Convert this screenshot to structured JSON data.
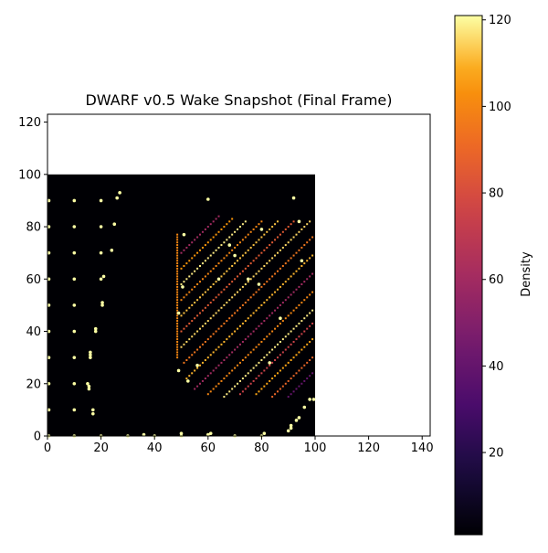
{
  "chart_data": {
    "type": "heatmap",
    "title": "DWARF v0.5 Wake Snapshot (Final Frame)",
    "xlabel": "",
    "ylabel": "",
    "xlim": [
      0,
      143
    ],
    "ylim": [
      0,
      123
    ],
    "xticks": [
      0,
      20,
      40,
      60,
      80,
      100,
      120,
      140
    ],
    "yticks": [
      0,
      20,
      40,
      60,
      80,
      100,
      120
    ],
    "grid": false,
    "field_extent": {
      "x": [
        0,
        100
      ],
      "y": [
        0,
        100
      ]
    },
    "field_background_density": 1,
    "colormap": "inferno",
    "colorbar": {
      "label": "Density",
      "range": [
        1,
        121
      ],
      "ticks": [
        20,
        40,
        60,
        80,
        100,
        120
      ]
    },
    "dense_column": {
      "x": 48.5,
      "y_start": 30,
      "y_end": 77,
      "value": 100
    },
    "streak_bands": [
      {
        "x_start": 50,
        "y_start": 70,
        "length": 14,
        "value": 60
      },
      {
        "x_start": 50,
        "y_start": 64,
        "length": 19,
        "value": 105
      },
      {
        "x_start": 50,
        "y_start": 58,
        "length": 24,
        "value": 118
      },
      {
        "x_start": 50,
        "y_start": 52,
        "length": 30,
        "value": 100
      },
      {
        "x_start": 50,
        "y_start": 46,
        "length": 36,
        "value": 112
      },
      {
        "x_start": 50,
        "y_start": 40,
        "length": 42,
        "value": 85
      },
      {
        "x_start": 50,
        "y_start": 34,
        "length": 48,
        "value": 115
      },
      {
        "x_start": 51,
        "y_start": 28,
        "length": 48,
        "value": 95
      },
      {
        "x_start": 52,
        "y_start": 22,
        "length": 47,
        "value": 110
      },
      {
        "x_start": 55,
        "y_start": 18,
        "length": 44,
        "value": 60
      },
      {
        "x_start": 60,
        "y_start": 16,
        "length": 39,
        "value": 100
      },
      {
        "x_start": 66,
        "y_start": 15,
        "length": 33,
        "value": 118
      },
      {
        "x_start": 72,
        "y_start": 16,
        "length": 27,
        "value": 75
      },
      {
        "x_start": 78,
        "y_start": 16,
        "length": 21,
        "value": 108
      },
      {
        "x_start": 84,
        "y_start": 15,
        "length": 15,
        "value": 90
      },
      {
        "x_start": 90,
        "y_start": 15,
        "length": 9,
        "value": 40
      }
    ],
    "sparse_points": [
      [
        0.5,
        90
      ],
      [
        0.5,
        80
      ],
      [
        0.5,
        70
      ],
      [
        0.5,
        60
      ],
      [
        0.5,
        50
      ],
      [
        0.5,
        40
      ],
      [
        0.5,
        30
      ],
      [
        0.5,
        20
      ],
      [
        0.5,
        10
      ],
      [
        0.5,
        0
      ],
      [
        10,
        90
      ],
      [
        10,
        80
      ],
      [
        10,
        70
      ],
      [
        10,
        60
      ],
      [
        10,
        50
      ],
      [
        10,
        40
      ],
      [
        10,
        30
      ],
      [
        10,
        20
      ],
      [
        10,
        10
      ],
      [
        10,
        0
      ],
      [
        20,
        90
      ],
      [
        20,
        80
      ],
      [
        20,
        70
      ],
      [
        20,
        60
      ],
      [
        20.5,
        50
      ],
      [
        20.5,
        51
      ],
      [
        21,
        61
      ],
      [
        20,
        0
      ],
      [
        24,
        71
      ],
      [
        25,
        81
      ],
      [
        26,
        91
      ],
      [
        27,
        93
      ],
      [
        18,
        41
      ],
      [
        18,
        40
      ],
      [
        16,
        32
      ],
      [
        16,
        31
      ],
      [
        16,
        30
      ],
      [
        15,
        20
      ],
      [
        15.5,
        19
      ],
      [
        15.5,
        18
      ],
      [
        17,
        10
      ],
      [
        17,
        8.5
      ],
      [
        30,
        0
      ],
      [
        36,
        0.5
      ],
      [
        40,
        0
      ],
      [
        50,
        1
      ],
      [
        50,
        0
      ],
      [
        60,
        0.5
      ],
      [
        61,
        1
      ],
      [
        70,
        0
      ],
      [
        80,
        0
      ],
      [
        81,
        1
      ],
      [
        90,
        2
      ],
      [
        91,
        3
      ],
      [
        91,
        4
      ],
      [
        93,
        6
      ],
      [
        94,
        7
      ],
      [
        96,
        11
      ],
      [
        98,
        14
      ],
      [
        99.5,
        14
      ],
      [
        49,
        47
      ],
      [
        49,
        25
      ],
      [
        52.5,
        21
      ],
      [
        50.5,
        57
      ],
      [
        51,
        77
      ],
      [
        60,
        90.5
      ],
      [
        70,
        69
      ],
      [
        80,
        79
      ],
      [
        79,
        58
      ],
      [
        92,
        91
      ],
      [
        94,
        82
      ],
      [
        95,
        67
      ],
      [
        75,
        60
      ],
      [
        83,
        28
      ],
      [
        56,
        27
      ],
      [
        64,
        60
      ],
      [
        68,
        73
      ],
      [
        87,
        45
      ]
    ]
  }
}
